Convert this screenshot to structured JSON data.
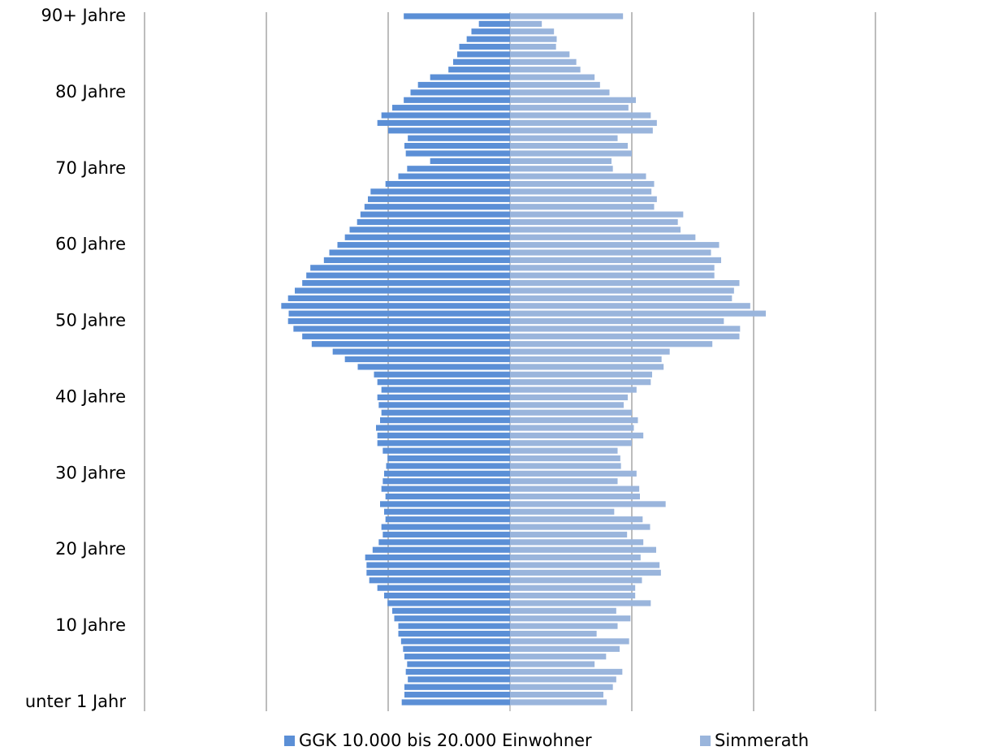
{
  "chart_data": {
    "type": "pyramid",
    "categories": [
      "unter 1 Jahr",
      null,
      null,
      null,
      null,
      null,
      null,
      null,
      null,
      null,
      "10 Jahre",
      null,
      null,
      null,
      null,
      null,
      null,
      null,
      null,
      null,
      "20 Jahre",
      null,
      null,
      null,
      null,
      null,
      null,
      null,
      null,
      null,
      "30 Jahre",
      null,
      null,
      null,
      null,
      null,
      null,
      null,
      null,
      null,
      "40 Jahre",
      null,
      null,
      null,
      null,
      null,
      null,
      null,
      null,
      null,
      "50 Jahre",
      null,
      null,
      null,
      null,
      null,
      null,
      null,
      null,
      null,
      "60 Jahre",
      null,
      null,
      null,
      null,
      null,
      null,
      null,
      null,
      null,
      "70 Jahre",
      null,
      null,
      null,
      null,
      null,
      null,
      null,
      null,
      null,
      "80 Jahre",
      null,
      null,
      null,
      null,
      null,
      null,
      null,
      null,
      null,
      "90+ Jahre"
    ],
    "series": [
      {
        "name": "GGK 10.000 bis 20.000 Einwohner",
        "color": "#5b8fd6",
        "side": "left",
        "values": [
          160,
          156,
          156,
          151,
          154,
          152,
          156,
          158,
          161,
          165,
          165,
          171,
          174,
          181,
          186,
          196,
          208,
          212,
          212,
          214,
          203,
          194,
          188,
          190,
          184,
          186,
          192,
          184,
          190,
          188,
          186,
          183,
          181,
          188,
          196,
          196,
          198,
          192,
          190,
          194,
          196,
          190,
          196,
          201,
          225,
          244,
          262,
          293,
          307,
          320,
          328,
          327,
          338,
          328,
          318,
          307,
          301,
          295,
          275,
          267,
          255,
          244,
          237,
          226,
          221,
          215,
          210,
          206,
          184,
          165,
          152,
          118,
          154,
          156,
          151,
          180,
          196,
          190,
          174,
          157,
          147,
          136,
          118,
          91,
          84,
          78,
          75,
          64,
          57,
          46,
          157
        ]
      },
      {
        "name": "Simmerath",
        "color": "#9ab5dc",
        "side": "right",
        "values": [
          143,
          138,
          152,
          157,
          166,
          125,
          142,
          162,
          176,
          128,
          159,
          178,
          157,
          208,
          185,
          185,
          195,
          223,
          221,
          193,
          216,
          197,
          173,
          207,
          196,
          154,
          230,
          192,
          191,
          159,
          187,
          164,
          163,
          159,
          180,
          197,
          183,
          189,
          180,
          168,
          174,
          187,
          208,
          210,
          227,
          224,
          236,
          299,
          339,
          340,
          316,
          378,
          355,
          328,
          331,
          339,
          302,
          302,
          312,
          297,
          309,
          274,
          252,
          248,
          256,
          213,
          217,
          209,
          213,
          201,
          152,
          150,
          180,
          174,
          159,
          211,
          217,
          208,
          175,
          186,
          147,
          133,
          125,
          104,
          98,
          88,
          68,
          69,
          65,
          47,
          167
        ]
      }
    ],
    "xlim": [
      -540,
      540
    ],
    "xticks": [
      -540,
      -360,
      -180,
      0,
      180,
      360,
      540
    ],
    "grid": true,
    "legend": "bottom"
  }
}
